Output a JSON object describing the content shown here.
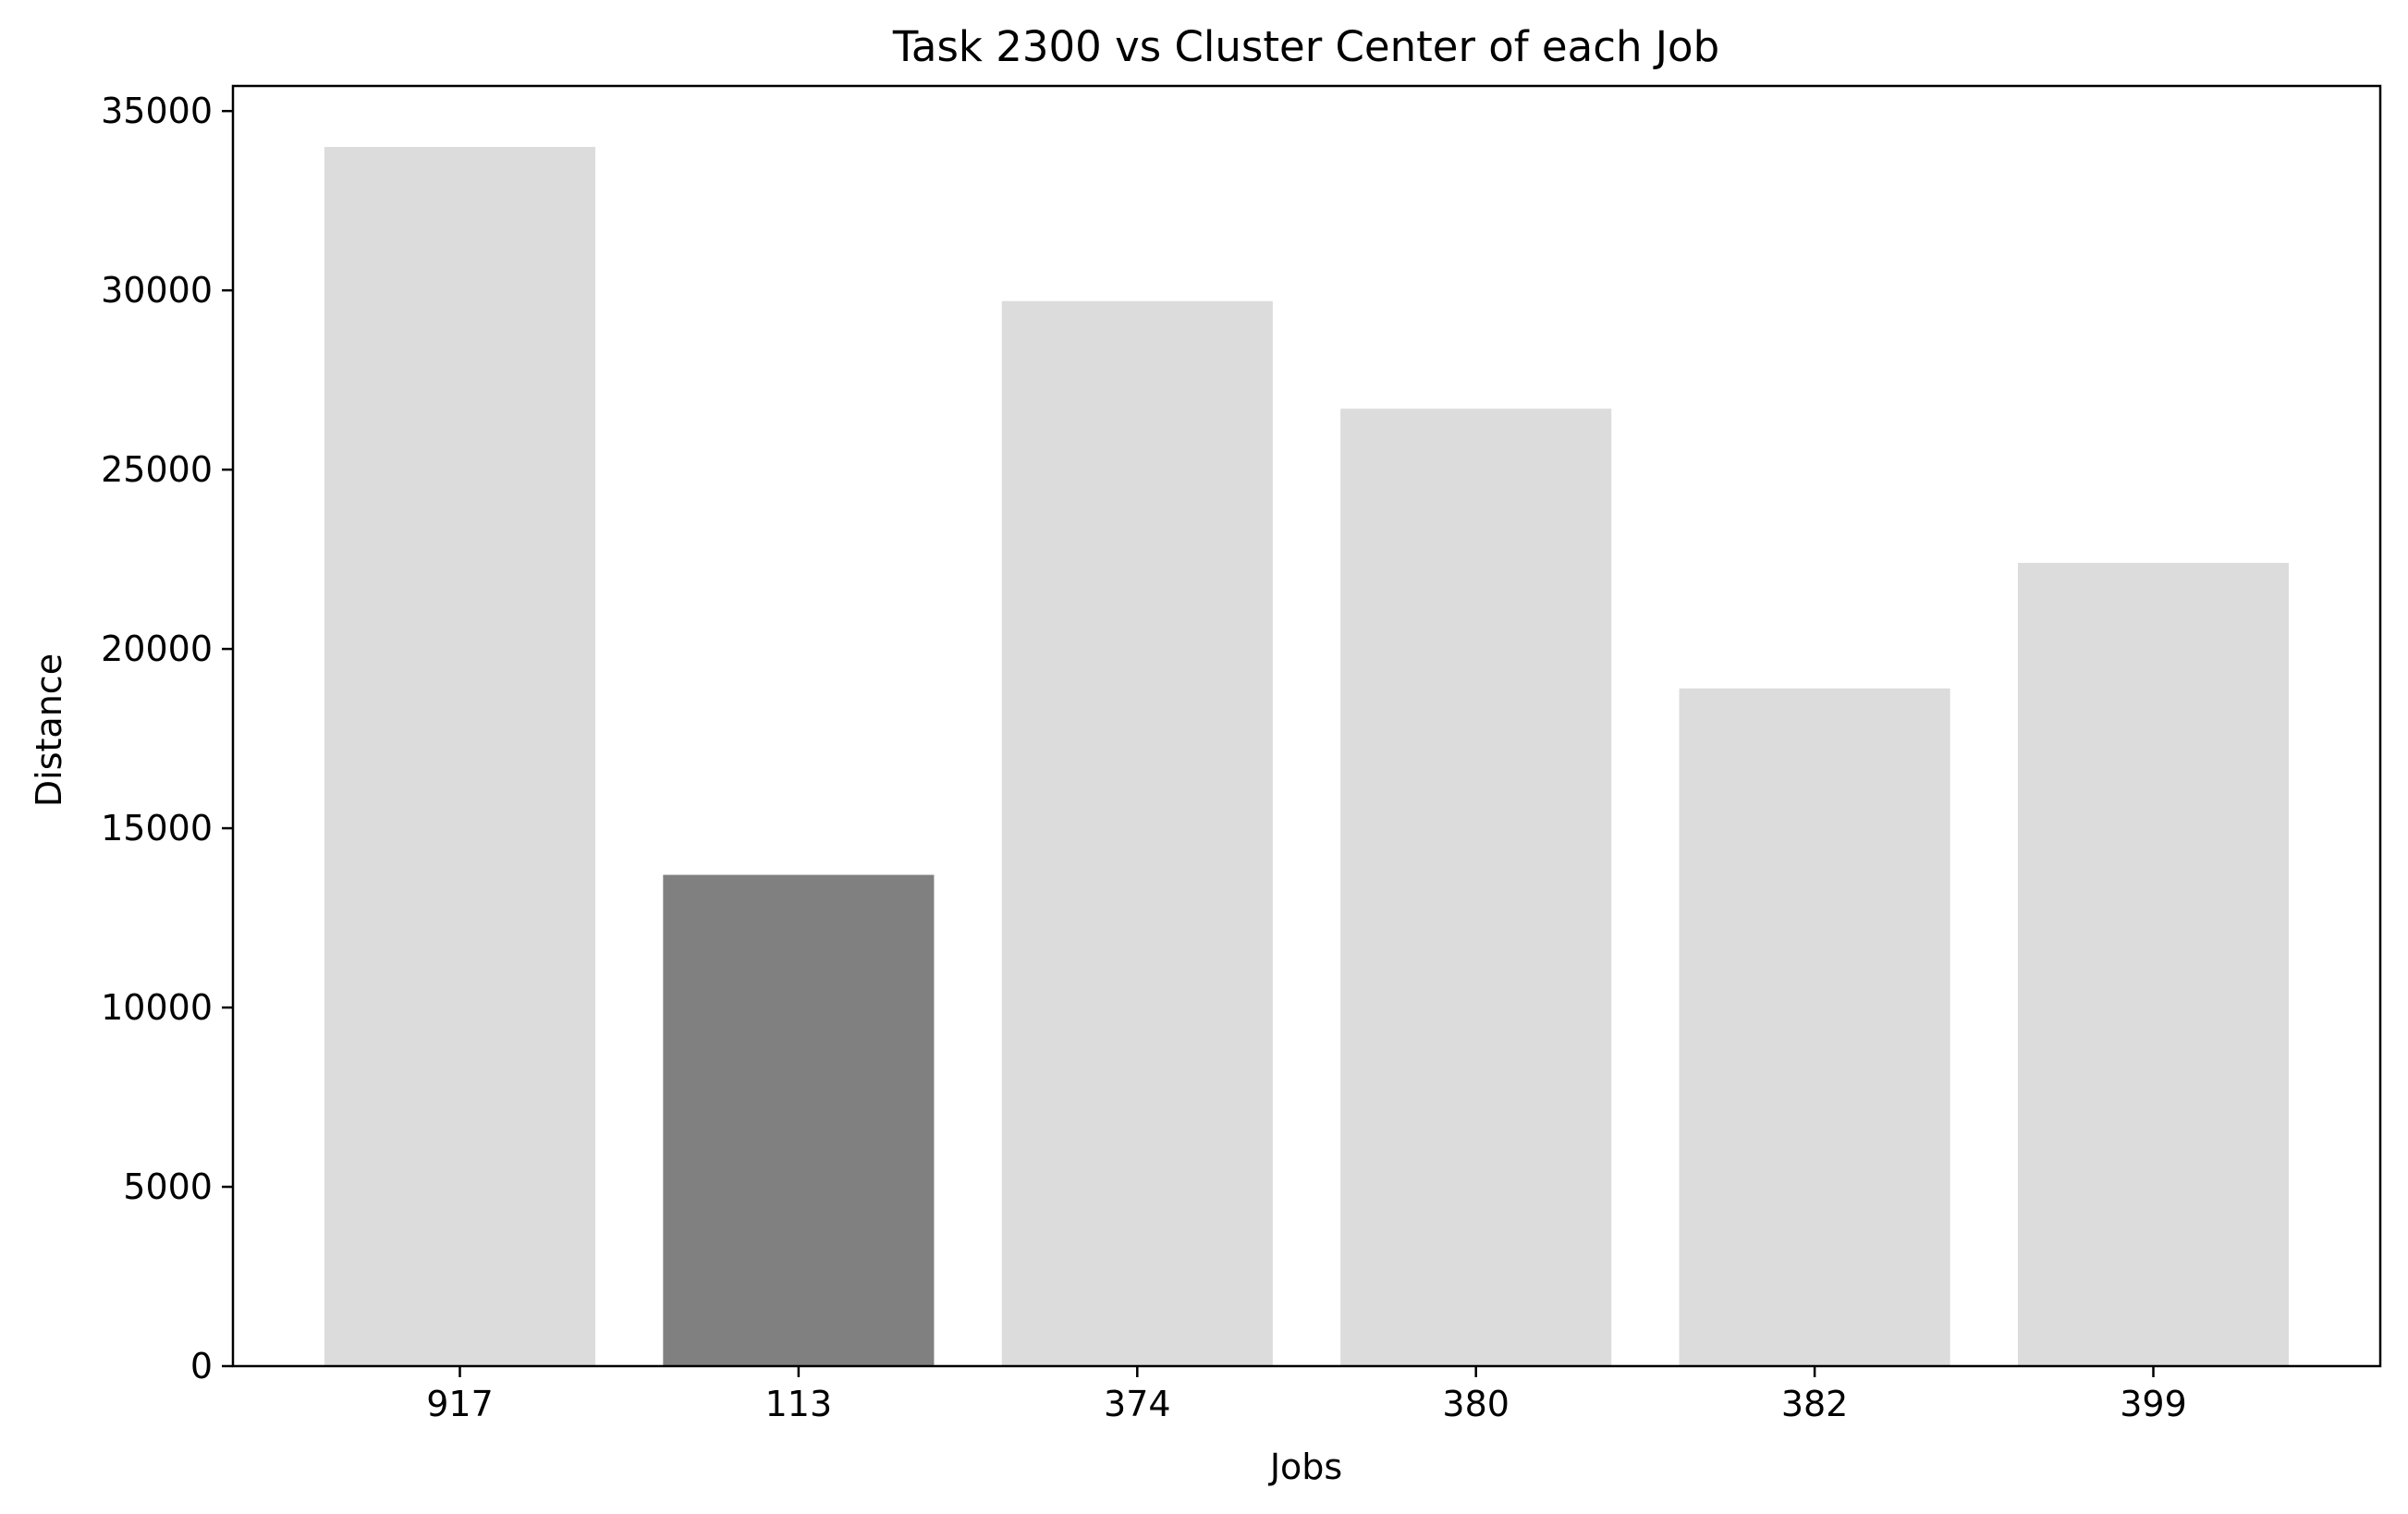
{
  "chart_data": {
    "type": "bar",
    "title": "Task 2300 vs Cluster Center of each Job",
    "xlabel": "Jobs",
    "ylabel": "Distance",
    "categories": [
      "917",
      "113",
      "374",
      "380",
      "382",
      "399"
    ],
    "values": [
      34000,
      13700,
      29700,
      26700,
      18900,
      22400
    ],
    "highlight_category": "113",
    "ylim": [
      0,
      35700
    ],
    "yticks": [
      0,
      5000,
      10000,
      15000,
      20000,
      25000,
      30000,
      35000
    ],
    "grid": false,
    "colors": {
      "bar": "#dcdcdc",
      "highlight": "#808080",
      "axis": "#000000"
    }
  }
}
